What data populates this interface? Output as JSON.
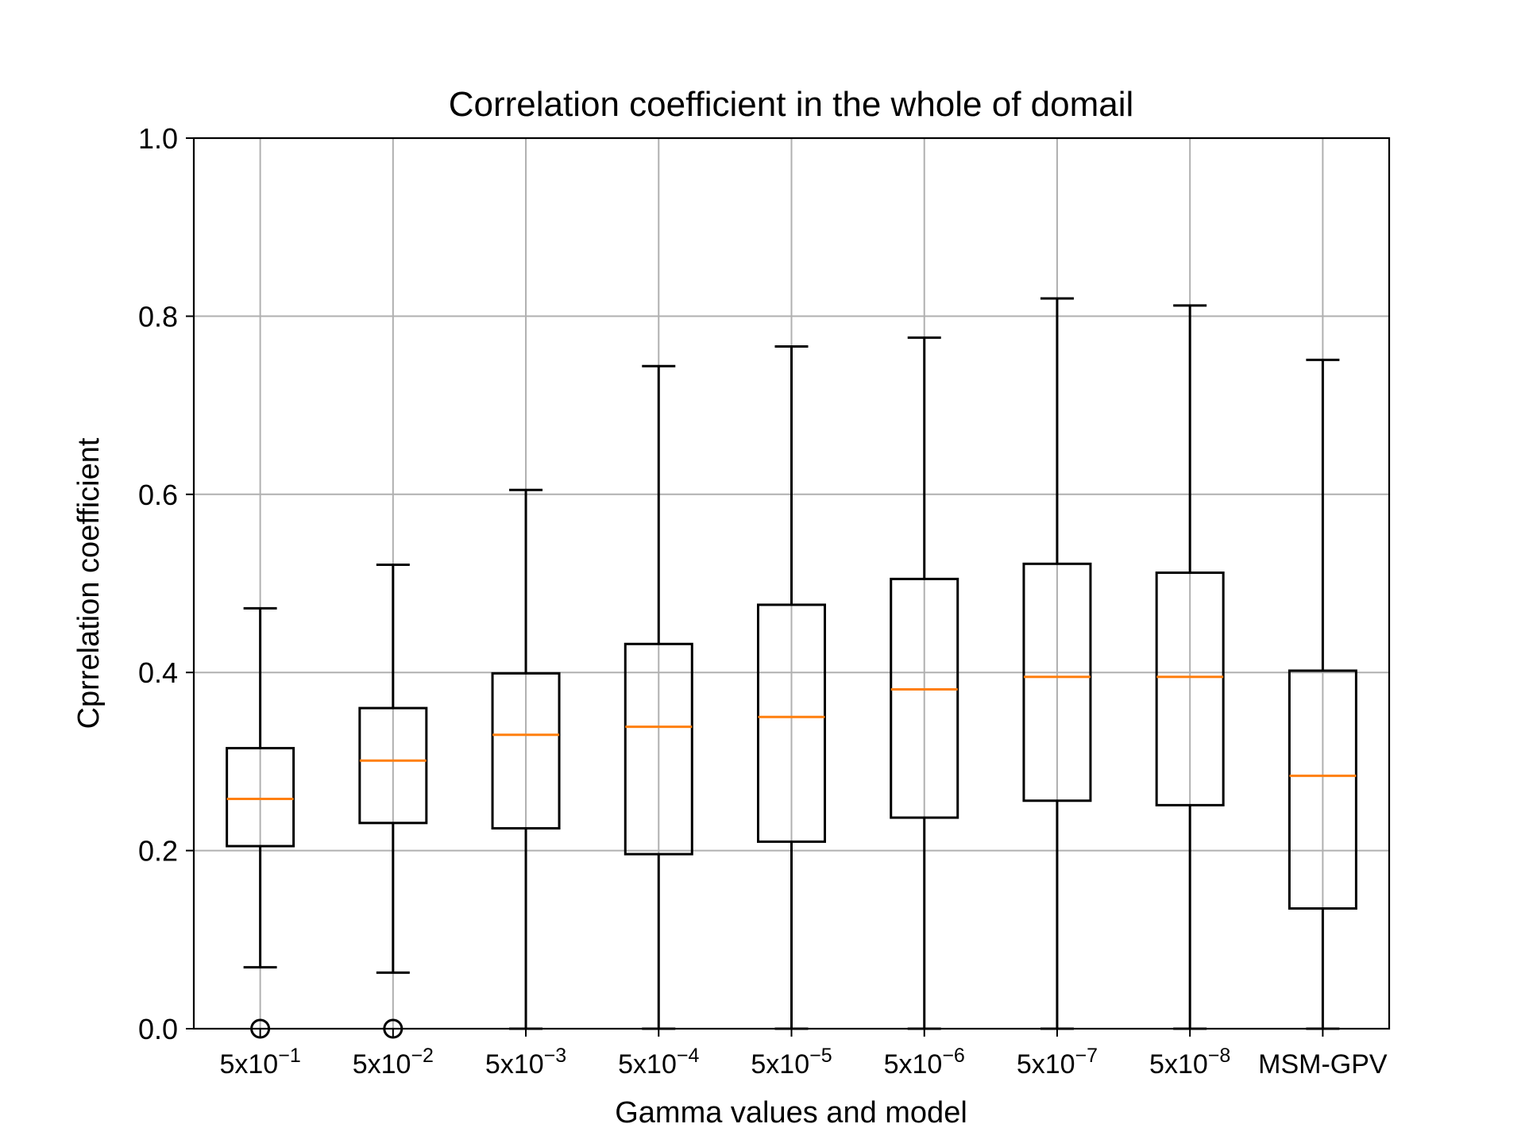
{
  "chart_data": {
    "type": "box",
    "title": "Correlation coefficient in the whole of domail",
    "xlabel": "Gamma values and model",
    "ylabel": "Cprrelation coefficient",
    "ylim": [
      0.0,
      1.0
    ],
    "yticks": [
      "0.0",
      "0.2",
      "0.4",
      "0.6",
      "0.8",
      "1.0"
    ],
    "grid": true,
    "categories": [
      {
        "base": "5x10",
        "exp": "−1"
      },
      {
        "base": "5x10",
        "exp": "−2"
      },
      {
        "base": "5x10",
        "exp": "−3"
      },
      {
        "base": "5x10",
        "exp": "−4"
      },
      {
        "base": "5x10",
        "exp": "−5"
      },
      {
        "base": "5x10",
        "exp": "−6"
      },
      {
        "base": "5x10",
        "exp": "−7"
      },
      {
        "base": "5x10",
        "exp": "−8"
      },
      {
        "base": "MSM-GPV",
        "exp": ""
      }
    ],
    "boxes": [
      {
        "whisker_low": 0.069,
        "q1": 0.205,
        "median": 0.258,
        "q3": 0.315,
        "whisker_high": 0.472,
        "outliers": [
          0.0
        ]
      },
      {
        "whisker_low": 0.063,
        "q1": 0.231,
        "median": 0.301,
        "q3": 0.36,
        "whisker_high": 0.521,
        "outliers": [
          0.0
        ]
      },
      {
        "whisker_low": 0.0,
        "q1": 0.225,
        "median": 0.33,
        "q3": 0.399,
        "whisker_high": 0.605,
        "outliers": []
      },
      {
        "whisker_low": 0.0,
        "q1": 0.196,
        "median": 0.339,
        "q3": 0.432,
        "whisker_high": 0.744,
        "outliers": []
      },
      {
        "whisker_low": 0.0,
        "q1": 0.21,
        "median": 0.35,
        "q3": 0.476,
        "whisker_high": 0.766,
        "outliers": []
      },
      {
        "whisker_low": 0.0,
        "q1": 0.237,
        "median": 0.381,
        "q3": 0.505,
        "whisker_high": 0.776,
        "outliers": []
      },
      {
        "whisker_low": 0.0,
        "q1": 0.256,
        "median": 0.395,
        "q3": 0.522,
        "whisker_high": 0.82,
        "outliers": []
      },
      {
        "whisker_low": 0.0,
        "q1": 0.251,
        "median": 0.395,
        "q3": 0.512,
        "whisker_high": 0.812,
        "outliers": []
      },
      {
        "whisker_low": 0.0,
        "q1": 0.135,
        "median": 0.284,
        "q3": 0.402,
        "whisker_high": 0.751,
        "outliers": []
      }
    ],
    "colors": {
      "box": "#000000",
      "median": "#ff7f0e",
      "grid": "#b0b0b0"
    }
  }
}
